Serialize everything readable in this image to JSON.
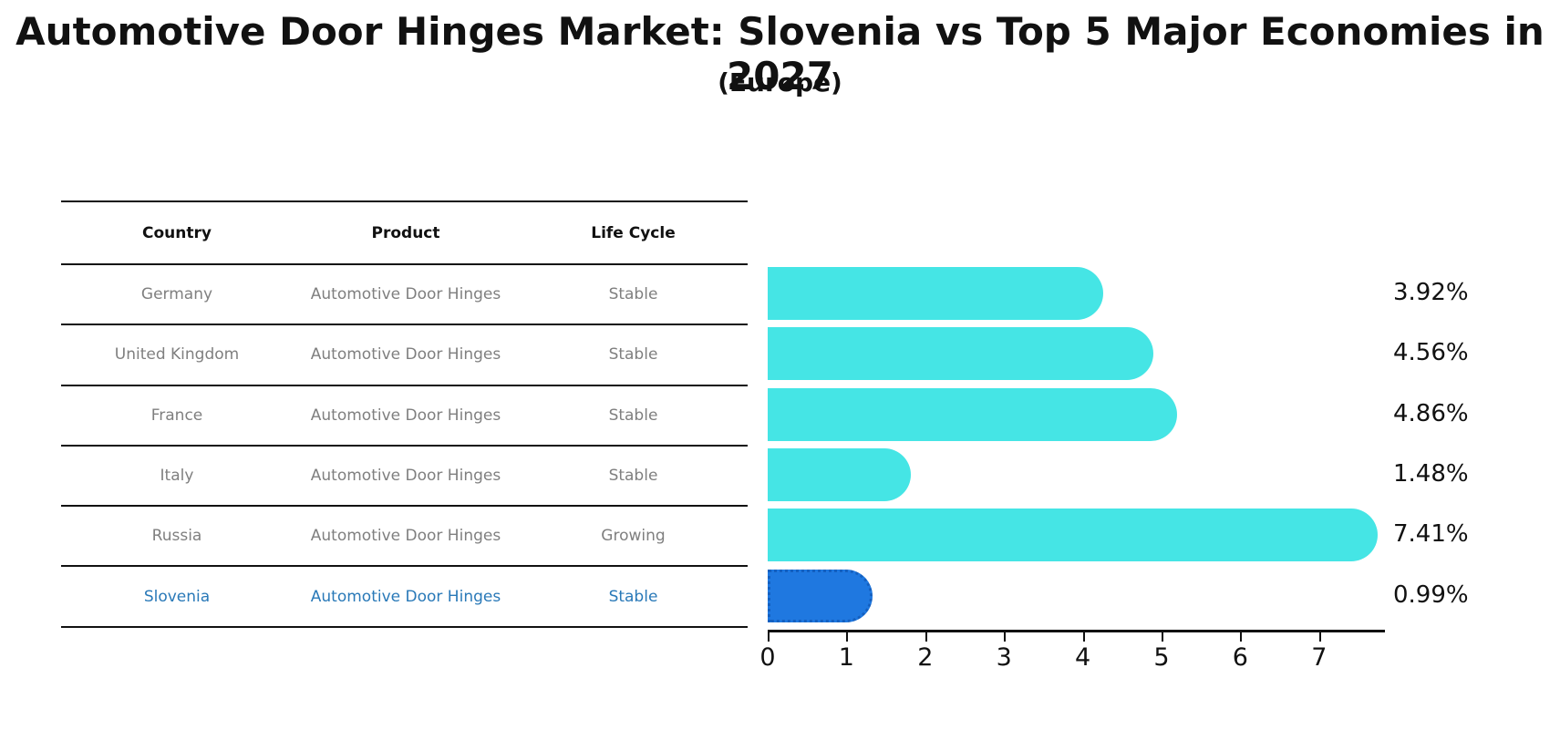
{
  "title": "Automotive Door Hinges Market: Slovenia vs Top 5 Major Economies in 2027",
  "subtitle": "(Europe)",
  "table": {
    "headers": [
      "Country",
      "Product",
      "Life Cycle"
    ],
    "rows": [
      {
        "country": "Germany",
        "product": "Automotive Door Hinges",
        "life_cycle": "Stable",
        "highlight": false
      },
      {
        "country": "United Kingdom",
        "product": "Automotive Door Hinges",
        "life_cycle": "Stable",
        "highlight": false
      },
      {
        "country": "France",
        "product": "Automotive Door Hinges",
        "life_cycle": "Stable",
        "highlight": false
      },
      {
        "country": "Italy",
        "product": "Automotive Door Hinges",
        "life_cycle": "Stable",
        "highlight": false
      },
      {
        "country": "Russia",
        "product": "Automotive Door Hinges",
        "life_cycle": "Growing",
        "highlight": false
      },
      {
        "country": "Slovenia",
        "product": "Automotive Door Hinges",
        "life_cycle": "Stable",
        "highlight": true
      }
    ]
  },
  "chart_data": {
    "type": "bar",
    "orientation": "horizontal",
    "categories": [
      "Germany",
      "United Kingdom",
      "France",
      "Italy",
      "Russia",
      "Slovenia"
    ],
    "values": [
      3.92,
      4.56,
      4.86,
      1.48,
      7.41,
      0.99
    ],
    "value_labels": [
      "3.92%",
      "4.56%",
      "4.86%",
      "1.48%",
      "7.41%",
      "0.99%"
    ],
    "x_ticks": [
      0,
      1,
      2,
      3,
      4,
      5,
      6,
      7
    ],
    "xlim": [
      0,
      7.8
    ],
    "grid": false,
    "legend": false,
    "bar_color": "#45e5e5",
    "highlight_bar_color": "#1f78e0",
    "highlight_index": 5,
    "highlight_text_color": "#2979b8",
    "text_color": "#7f7f7f"
  }
}
